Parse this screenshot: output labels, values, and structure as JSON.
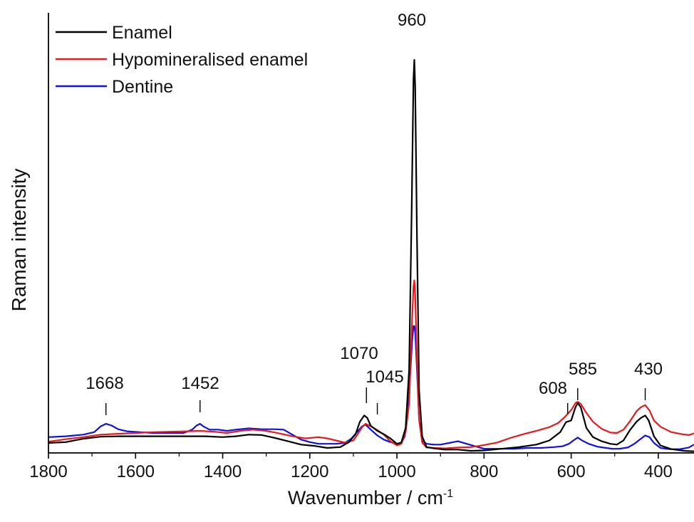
{
  "chart_data": {
    "type": "line",
    "xlabel": "Wavenumber / cm",
    "xlabel_sup": "-1",
    "ylabel": "Raman intensity",
    "xlim": [
      1800,
      318
    ],
    "ylim": [
      0,
      100
    ],
    "x_reversed": true,
    "yticks_shown": false,
    "grid": false,
    "legend_position": "top-left",
    "xticks": [
      1800,
      1600,
      1400,
      1200,
      1000,
      800,
      600,
      400
    ],
    "xtick_labels": [
      "1800",
      "1600",
      "1400",
      "1200",
      "1000",
      "800",
      "600",
      "400"
    ],
    "annotations": [
      {
        "text": "960",
        "x": 960,
        "marker": false
      },
      {
        "text": "1070",
        "x": 1070,
        "marker": true
      },
      {
        "text": "1045",
        "x": 1045,
        "marker": true
      },
      {
        "text": "1668",
        "x": 1668,
        "marker": true
      },
      {
        "text": "1452",
        "x": 1452,
        "marker": true
      },
      {
        "text": "608",
        "x": 608,
        "marker": true
      },
      {
        "text": "585",
        "x": 585,
        "marker": true
      },
      {
        "text": "430",
        "x": 430,
        "marker": true
      }
    ],
    "series": [
      {
        "name": "Enamel",
        "color": "#000000",
        "points": [
          [
            1800,
            2.4
          ],
          [
            1760,
            2.6
          ],
          [
            1720,
            3.4
          ],
          [
            1680,
            3.9
          ],
          [
            1640,
            4.0
          ],
          [
            1600,
            4.0
          ],
          [
            1560,
            4.0
          ],
          [
            1520,
            4.0
          ],
          [
            1480,
            4.0
          ],
          [
            1440,
            4.0
          ],
          [
            1400,
            3.8
          ],
          [
            1370,
            4.0
          ],
          [
            1340,
            4.4
          ],
          [
            1310,
            4.3
          ],
          [
            1280,
            3.6
          ],
          [
            1250,
            2.8
          ],
          [
            1220,
            2.0
          ],
          [
            1190,
            1.7
          ],
          [
            1160,
            1.2
          ],
          [
            1130,
            1.4
          ],
          [
            1110,
            2.6
          ],
          [
            1095,
            4.5
          ],
          [
            1085,
            7.5
          ],
          [
            1075,
            9.0
          ],
          [
            1068,
            8.4
          ],
          [
            1060,
            6.5
          ],
          [
            1045,
            5.3
          ],
          [
            1030,
            4.5
          ],
          [
            1015,
            3.5
          ],
          [
            1000,
            2.2
          ],
          [
            990,
            2.5
          ],
          [
            980,
            6.0
          ],
          [
            972,
            20.0
          ],
          [
            966,
            60.0
          ],
          [
            962,
            90.0
          ],
          [
            960,
            94.5
          ],
          [
            958,
            88.0
          ],
          [
            954,
            52.0
          ],
          [
            949,
            15.0
          ],
          [
            942,
            4.0
          ],
          [
            932,
            1.4
          ],
          [
            915,
            1.1
          ],
          [
            890,
            0.8
          ],
          [
            860,
            0.8
          ],
          [
            830,
            0.5
          ],
          [
            800,
            0.6
          ],
          [
            760,
            1.0
          ],
          [
            720,
            1.4
          ],
          [
            680,
            2.0
          ],
          [
            650,
            3.0
          ],
          [
            625,
            5.0
          ],
          [
            612,
            7.4
          ],
          [
            600,
            7.8
          ],
          [
            590,
            11.0
          ],
          [
            585,
            12.0
          ],
          [
            578,
            11.0
          ],
          [
            565,
            6.0
          ],
          [
            550,
            3.8
          ],
          [
            530,
            2.8
          ],
          [
            510,
            2.2
          ],
          [
            495,
            2.0
          ],
          [
            480,
            3.0
          ],
          [
            465,
            5.5
          ],
          [
            450,
            7.5
          ],
          [
            440,
            8.4
          ],
          [
            430,
            9.0
          ],
          [
            422,
            7.8
          ],
          [
            410,
            4.0
          ],
          [
            395,
            1.8
          ],
          [
            370,
            0.9
          ],
          [
            340,
            0.5
          ],
          [
            318,
            0.4
          ]
        ]
      },
      {
        "name": "Hypomineralised enamel",
        "color": "#e8191c",
        "points": [
          [
            1800,
            2.7
          ],
          [
            1760,
            3.3
          ],
          [
            1720,
            3.8
          ],
          [
            1680,
            4.4
          ],
          [
            1640,
            4.6
          ],
          [
            1600,
            4.8
          ],
          [
            1560,
            5.0
          ],
          [
            1520,
            5.1
          ],
          [
            1480,
            5.2
          ],
          [
            1452,
            5.3
          ],
          [
            1420,
            5.1
          ],
          [
            1390,
            4.8
          ],
          [
            1360,
            5.3
          ],
          [
            1330,
            5.6
          ],
          [
            1300,
            5.3
          ],
          [
            1270,
            4.7
          ],
          [
            1240,
            4.0
          ],
          [
            1210,
            3.5
          ],
          [
            1180,
            3.8
          ],
          [
            1160,
            3.5
          ],
          [
            1140,
            3.0
          ],
          [
            1120,
            2.5
          ],
          [
            1100,
            3.0
          ],
          [
            1090,
            4.5
          ],
          [
            1080,
            6.2
          ],
          [
            1072,
            7.0
          ],
          [
            1060,
            6.4
          ],
          [
            1045,
            5.5
          ],
          [
            1030,
            4.4
          ],
          [
            1015,
            2.8
          ],
          [
            1000,
            1.8
          ],
          [
            990,
            2.2
          ],
          [
            980,
            5.0
          ],
          [
            972,
            12.0
          ],
          [
            966,
            30.0
          ],
          [
            962,
            40.0
          ],
          [
            960,
            41.5
          ],
          [
            958,
            38.0
          ],
          [
            954,
            22.0
          ],
          [
            949,
            8.0
          ],
          [
            942,
            2.5
          ],
          [
            932,
            1.3
          ],
          [
            915,
            1.2
          ],
          [
            890,
            1.1
          ],
          [
            860,
            1.3
          ],
          [
            830,
            1.4
          ],
          [
            800,
            1.9
          ],
          [
            770,
            2.5
          ],
          [
            740,
            3.6
          ],
          [
            710,
            4.5
          ],
          [
            680,
            5.3
          ],
          [
            650,
            6.2
          ],
          [
            630,
            7.2
          ],
          [
            615,
            8.6
          ],
          [
            600,
            10.3
          ],
          [
            590,
            12.0
          ],
          [
            585,
            12.3
          ],
          [
            578,
            11.8
          ],
          [
            565,
            9.6
          ],
          [
            550,
            7.5
          ],
          [
            530,
            5.8
          ],
          [
            510,
            4.9
          ],
          [
            495,
            4.8
          ],
          [
            480,
            5.6
          ],
          [
            465,
            7.6
          ],
          [
            450,
            10.0
          ],
          [
            440,
            11.0
          ],
          [
            430,
            11.5
          ],
          [
            420,
            10.2
          ],
          [
            410,
            7.8
          ],
          [
            395,
            6.3
          ],
          [
            370,
            5.0
          ],
          [
            345,
            4.5
          ],
          [
            330,
            4.3
          ],
          [
            318,
            4.7
          ]
        ]
      },
      {
        "name": "Dentine",
        "color": "#1010e0",
        "points": [
          [
            1800,
            3.8
          ],
          [
            1760,
            4.0
          ],
          [
            1720,
            4.4
          ],
          [
            1695,
            5.0
          ],
          [
            1680,
            6.4
          ],
          [
            1668,
            7.0
          ],
          [
            1655,
            6.6
          ],
          [
            1640,
            5.7
          ],
          [
            1620,
            5.2
          ],
          [
            1590,
            5.0
          ],
          [
            1560,
            4.8
          ],
          [
            1520,
            4.8
          ],
          [
            1490,
            4.8
          ],
          [
            1470,
            5.6
          ],
          [
            1460,
            6.6
          ],
          [
            1452,
            7.0
          ],
          [
            1443,
            6.3
          ],
          [
            1430,
            5.6
          ],
          [
            1410,
            5.6
          ],
          [
            1390,
            5.3
          ],
          [
            1370,
            5.6
          ],
          [
            1340,
            5.9
          ],
          [
            1310,
            5.7
          ],
          [
            1280,
            5.7
          ],
          [
            1260,
            5.6
          ],
          [
            1240,
            4.4
          ],
          [
            1220,
            3.2
          ],
          [
            1200,
            2.6
          ],
          [
            1180,
            2.2
          ],
          [
            1160,
            2.2
          ],
          [
            1140,
            2.2
          ],
          [
            1120,
            2.4
          ],
          [
            1105,
            3.4
          ],
          [
            1090,
            5.2
          ],
          [
            1080,
            6.4
          ],
          [
            1072,
            6.8
          ],
          [
            1060,
            5.6
          ],
          [
            1045,
            4.2
          ],
          [
            1030,
            3.2
          ],
          [
            1015,
            2.6
          ],
          [
            1000,
            2.2
          ],
          [
            990,
            2.4
          ],
          [
            982,
            4.0
          ],
          [
            975,
            10.0
          ],
          [
            970,
            18.0
          ],
          [
            965,
            27.0
          ],
          [
            962,
            30.5
          ],
          [
            960,
            30.5
          ],
          [
            958,
            29.0
          ],
          [
            954,
            20.0
          ],
          [
            949,
            8.0
          ],
          [
            942,
            3.0
          ],
          [
            932,
            2.2
          ],
          [
            915,
            2.0
          ],
          [
            900,
            2.0
          ],
          [
            880,
            2.4
          ],
          [
            860,
            2.8
          ],
          [
            840,
            2.2
          ],
          [
            820,
            1.6
          ],
          [
            800,
            1.0
          ],
          [
            780,
            1.0
          ],
          [
            760,
            1.0
          ],
          [
            730,
            1.0
          ],
          [
            700,
            1.2
          ],
          [
            670,
            1.2
          ],
          [
            640,
            1.4
          ],
          [
            620,
            1.6
          ],
          [
            605,
            2.2
          ],
          [
            595,
            3.0
          ],
          [
            585,
            3.7
          ],
          [
            575,
            3.0
          ],
          [
            560,
            2.2
          ],
          [
            540,
            1.5
          ],
          [
            520,
            1.2
          ],
          [
            505,
            1.0
          ],
          [
            490,
            1.0
          ],
          [
            470,
            1.3
          ],
          [
            455,
            2.2
          ],
          [
            440,
            3.4
          ],
          [
            430,
            4.2
          ],
          [
            420,
            3.8
          ],
          [
            410,
            2.4
          ],
          [
            395,
            1.2
          ],
          [
            375,
            0.9
          ],
          [
            350,
            0.9
          ],
          [
            330,
            1.3
          ],
          [
            318,
            2.0
          ]
        ]
      }
    ]
  }
}
